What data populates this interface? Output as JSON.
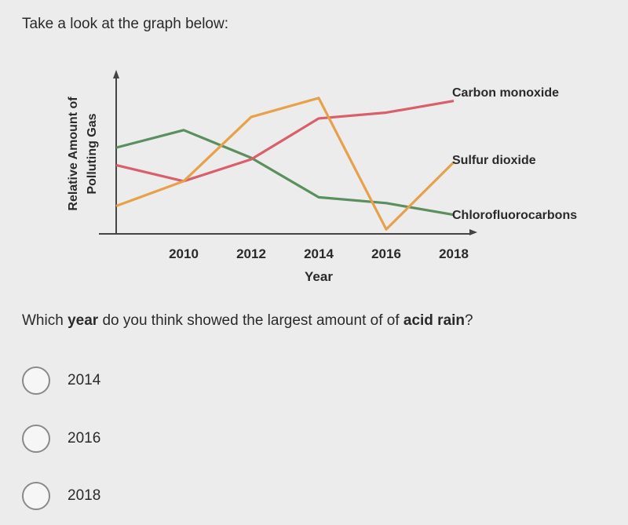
{
  "intro_text": "Take a look at the graph below:",
  "question": {
    "part1": "Which ",
    "bold1": "year",
    "part2": " do you think showed the largest amount of of ",
    "bold2": "acid rain",
    "part3": "?"
  },
  "options": [
    {
      "label": "2014"
    },
    {
      "label": "2016"
    },
    {
      "label": "2018"
    }
  ],
  "chart_data": {
    "type": "line",
    "xlabel": "Year",
    "ylabel": "Relative Amount of Polluting Gas",
    "ylabel_lines": [
      "Relative Amount of",
      "Polluting Gas"
    ],
    "x": [
      2008,
      2010,
      2012,
      2014,
      2016,
      2018
    ],
    "tick_labels": [
      "2010",
      "2012",
      "2014",
      "2016",
      "2018"
    ],
    "tick_values": [
      2010,
      2012,
      2014,
      2016,
      2018
    ],
    "xlim": [
      2008,
      2018
    ],
    "ylim": [
      0,
      100
    ],
    "series": [
      {
        "name": "Carbon monoxide",
        "color": "#d95f6a",
        "x": [
          2008,
          2010,
          2012,
          2014,
          2016,
          2018
        ],
        "values": [
          46,
          35,
          50,
          78,
          82,
          90
        ]
      },
      {
        "name": "Sulfur dioxide",
        "color": "#e8a04a",
        "x": [
          2008,
          2010,
          2012,
          2014,
          2016,
          2018
        ],
        "values": [
          18,
          35,
          79,
          92,
          2,
          48
        ]
      },
      {
        "name": "Chlorofluorocarbons",
        "color": "#5a8f5e",
        "x": [
          2008,
          2010,
          2012,
          2014,
          2016,
          2018
        ],
        "values": [
          58,
          70,
          51,
          24,
          20,
          12
        ]
      }
    ]
  }
}
